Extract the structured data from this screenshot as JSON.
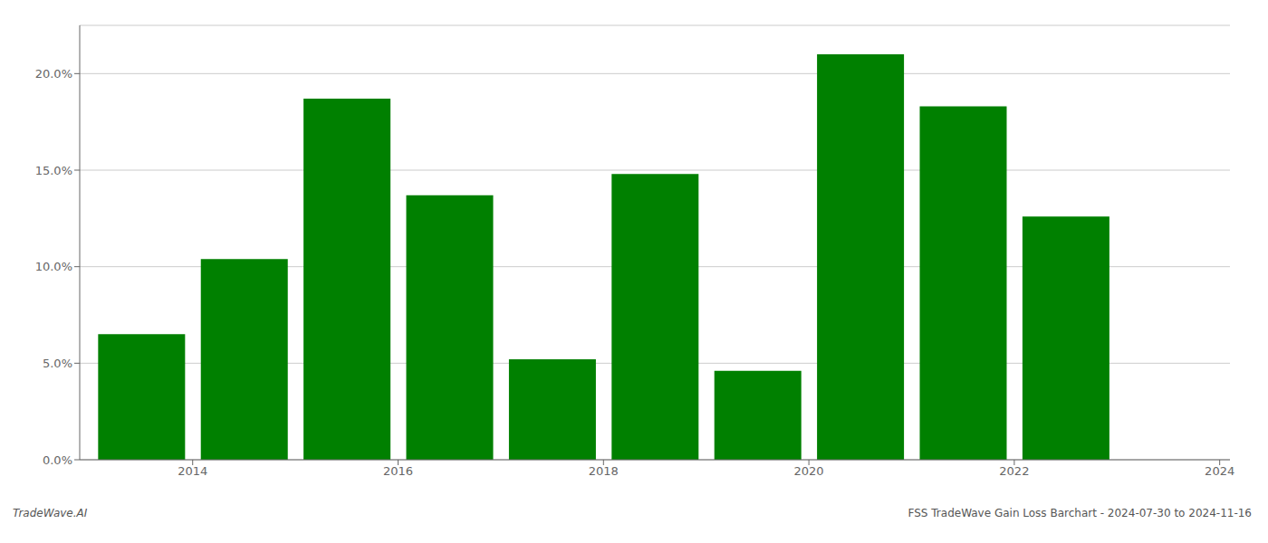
{
  "chart_data": {
    "type": "bar",
    "x": [
      2014,
      2015,
      2016,
      2017,
      2018,
      2019,
      2020,
      2021,
      2022,
      2023
    ],
    "values": [
      0.065,
      0.104,
      0.187,
      0.137,
      0.052,
      0.148,
      0.046,
      0.21,
      0.183,
      0.126
    ],
    "color": "#008000",
    "xlim": [
      2013.4,
      2024.6
    ],
    "xticks": [
      {
        "value": 2014.5,
        "label": "2014"
      },
      {
        "value": 2016.5,
        "label": "2016"
      },
      {
        "value": 2018.5,
        "label": "2018"
      },
      {
        "value": 2020.5,
        "label": "2020"
      },
      {
        "value": 2022.5,
        "label": "2022"
      },
      {
        "value": 2024.5,
        "label": "2024"
      }
    ],
    "ylim": [
      0,
      0.225
    ],
    "yticks": [
      {
        "value": 0.0,
        "label": "0.0%"
      },
      {
        "value": 0.05,
        "label": "5.0%"
      },
      {
        "value": 0.1,
        "label": "10.0%"
      },
      {
        "value": 0.15,
        "label": "15.0%"
      },
      {
        "value": 0.2,
        "label": "20.0%"
      }
    ],
    "grid": true,
    "annotations": [
      "TradeWave.AI",
      "FSS TradeWave Gain Loss Barchart - 2024-07-30 to 2024-11-16"
    ]
  }
}
